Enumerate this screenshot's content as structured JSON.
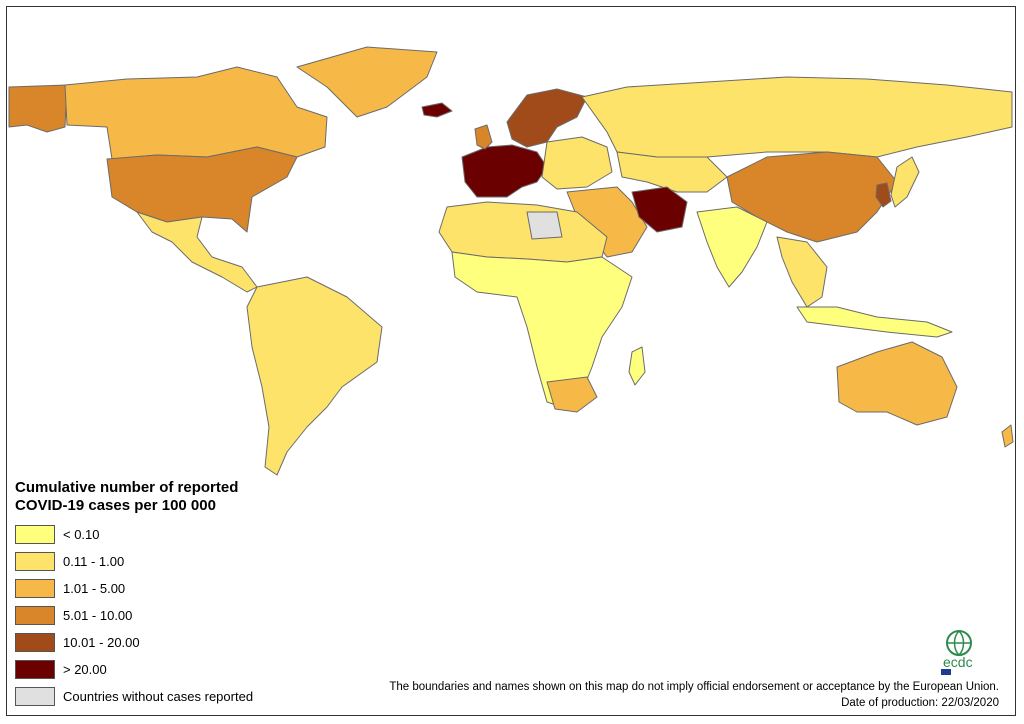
{
  "map": {
    "legend_title_line1": "Cumulative number of reported",
    "legend_title_line2": "COVID-19 cases per 100 000",
    "legend": [
      {
        "label": "< 0.10",
        "color": "#ffff7e"
      },
      {
        "label": "0.11 - 1.00",
        "color": "#fde36a"
      },
      {
        "label": "1.01 - 5.00",
        "color": "#f6b947"
      },
      {
        "label": "5.01 - 10.00",
        "color": "#d9862b"
      },
      {
        "label": "10.01 - 20.00",
        "color": "#a14b1a"
      },
      {
        "label": "> 20.00",
        "color": "#6b0000"
      },
      {
        "label": "Countries without cases reported",
        "color": "#e0e0e0"
      }
    ],
    "disclaimer": "The boundaries and names shown on this map do not imply official endorsement or acceptance by the European Union.",
    "date": "Date of production: 22/03/2020",
    "logo_text": "ecdc",
    "colors": {
      "border": "#666666",
      "ocean": "#ffffff"
    }
  }
}
